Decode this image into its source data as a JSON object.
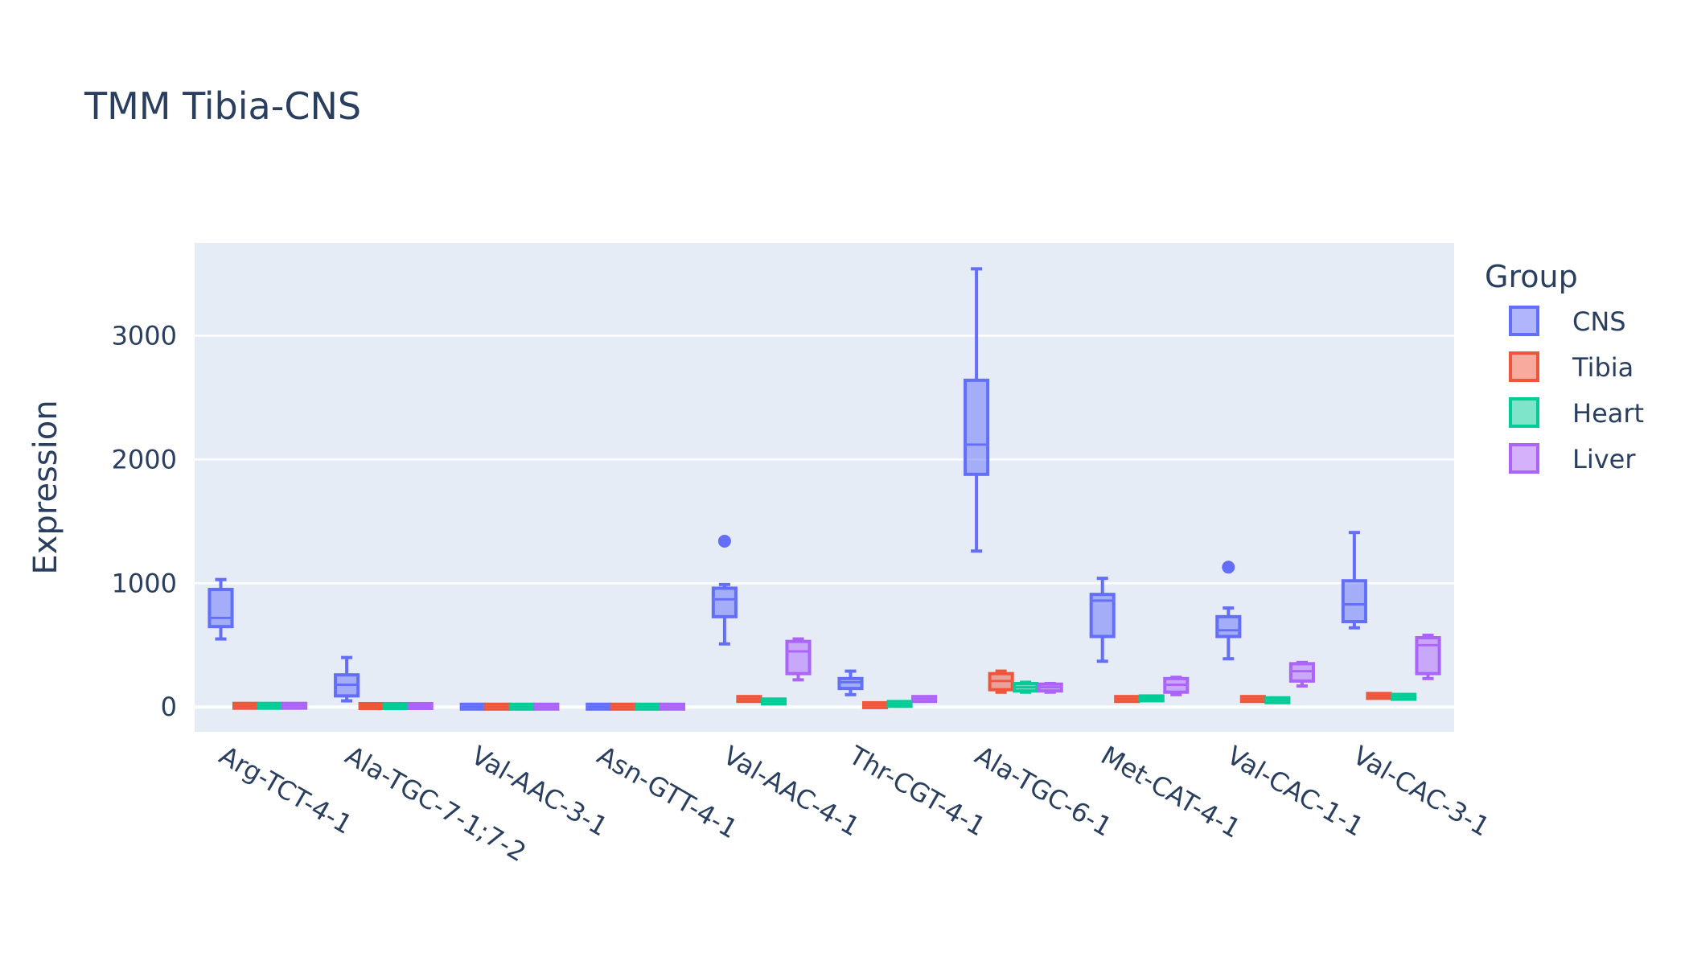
{
  "chart_data": {
    "type": "box",
    "title": "TMM Tibia-CNS",
    "xlabel": "",
    "ylabel": "Expression",
    "ylim": [
      -200,
      3750
    ],
    "yticks": [
      0,
      1000,
      2000,
      3000
    ],
    "legend": {
      "title": "Group",
      "position": "right"
    },
    "grid": true,
    "categories": [
      "Arg-TCT-4-1",
      "Ala-TGC-7-1;7-2",
      "Val-AAC-3-1",
      "Asn-GTT-4-1",
      "Val-AAC-4-1",
      "Thr-CGT-4-1",
      "Ala-TGC-6-1",
      "Met-CAT-4-1",
      "Val-CAC-1-1",
      "Val-CAC-3-1"
    ],
    "series": [
      {
        "name": "CNS",
        "color": "#636efa",
        "boxes": [
          {
            "min": 550,
            "q1": 650,
            "median": 720,
            "q3": 950,
            "max": 1030,
            "outliers": []
          },
          {
            "min": 50,
            "q1": 90,
            "median": 180,
            "q3": 260,
            "max": 400,
            "outliers": []
          },
          {
            "min": 0,
            "q1": 0,
            "median": 3,
            "q3": 6,
            "max": 8,
            "outliers": []
          },
          {
            "min": 0,
            "q1": 0,
            "median": 3,
            "q3": 6,
            "max": 8,
            "outliers": []
          },
          {
            "min": 510,
            "q1": 730,
            "median": 870,
            "q3": 960,
            "max": 990,
            "outliers": [
              1340
            ]
          },
          {
            "min": 100,
            "q1": 150,
            "median": 200,
            "q3": 230,
            "max": 290,
            "outliers": []
          },
          {
            "min": 1260,
            "q1": 1880,
            "median": 2120,
            "q3": 2640,
            "max": 3540,
            "outliers": []
          },
          {
            "min": 370,
            "q1": 570,
            "median": 860,
            "q3": 910,
            "max": 1040,
            "outliers": []
          },
          {
            "min": 390,
            "q1": 570,
            "median": 620,
            "q3": 730,
            "max": 800,
            "outliers": [
              1130
            ]
          },
          {
            "min": 640,
            "q1": 690,
            "median": 830,
            "q3": 1020,
            "max": 1410,
            "outliers": []
          }
        ]
      },
      {
        "name": "Tibia",
        "color": "#ef553b",
        "boxes": [
          {
            "min": 2,
            "q1": 5,
            "median": 10,
            "q3": 15,
            "max": 20,
            "outliers": []
          },
          {
            "min": 2,
            "q1": 4,
            "median": 8,
            "q3": 12,
            "max": 16,
            "outliers": []
          },
          {
            "min": 0,
            "q1": 0,
            "median": 3,
            "q3": 6,
            "max": 8,
            "outliers": []
          },
          {
            "min": 0,
            "q1": 0,
            "median": 3,
            "q3": 6,
            "max": 8,
            "outliers": []
          },
          {
            "min": 50,
            "q1": 55,
            "median": 65,
            "q3": 75,
            "max": 80,
            "outliers": []
          },
          {
            "min": 0,
            "q1": 5,
            "median": 15,
            "q3": 25,
            "max": 30,
            "outliers": []
          },
          {
            "min": 120,
            "q1": 140,
            "median": 210,
            "q3": 270,
            "max": 290,
            "outliers": []
          },
          {
            "min": 50,
            "q1": 55,
            "median": 65,
            "q3": 75,
            "max": 80,
            "outliers": []
          },
          {
            "min": 50,
            "q1": 55,
            "median": 65,
            "q3": 75,
            "max": 80,
            "outliers": []
          },
          {
            "min": 75,
            "q1": 80,
            "median": 90,
            "q3": 100,
            "max": 105,
            "outliers": []
          }
        ]
      },
      {
        "name": "Heart",
        "color": "#00cc96",
        "boxes": [
          {
            "min": 2,
            "q1": 5,
            "median": 10,
            "q3": 15,
            "max": 20,
            "outliers": []
          },
          {
            "min": 2,
            "q1": 4,
            "median": 8,
            "q3": 12,
            "max": 16,
            "outliers": []
          },
          {
            "min": 0,
            "q1": 0,
            "median": 3,
            "q3": 6,
            "max": 8,
            "outliers": []
          },
          {
            "min": 0,
            "q1": 0,
            "median": 3,
            "q3": 6,
            "max": 8,
            "outliers": []
          },
          {
            "min": 30,
            "q1": 35,
            "median": 45,
            "q3": 55,
            "max": 60,
            "outliers": []
          },
          {
            "min": 10,
            "q1": 15,
            "median": 25,
            "q3": 35,
            "max": 40,
            "outliers": []
          },
          {
            "min": 120,
            "q1": 130,
            "median": 160,
            "q3": 190,
            "max": 200,
            "outliers": []
          },
          {
            "min": 55,
            "q1": 60,
            "median": 70,
            "q3": 80,
            "max": 85,
            "outliers": []
          },
          {
            "min": 40,
            "q1": 45,
            "median": 55,
            "q3": 65,
            "max": 70,
            "outliers": []
          },
          {
            "min": 65,
            "q1": 70,
            "median": 85,
            "q3": 95,
            "max": 100,
            "outliers": []
          }
        ]
      },
      {
        "name": "Liver",
        "color": "#ab63fa",
        "boxes": [
          {
            "min": 2,
            "q1": 5,
            "median": 10,
            "q3": 15,
            "max": 20,
            "outliers": []
          },
          {
            "min": 2,
            "q1": 4,
            "median": 8,
            "q3": 12,
            "max": 16,
            "outliers": []
          },
          {
            "min": 0,
            "q1": 0,
            "median": 3,
            "q3": 6,
            "max": 8,
            "outliers": []
          },
          {
            "min": 0,
            "q1": 0,
            "median": 3,
            "q3": 6,
            "max": 8,
            "outliers": []
          },
          {
            "min": 220,
            "q1": 270,
            "median": 450,
            "q3": 530,
            "max": 550,
            "outliers": []
          },
          {
            "min": 50,
            "q1": 55,
            "median": 65,
            "q3": 75,
            "max": 80,
            "outliers": []
          },
          {
            "min": 120,
            "q1": 130,
            "median": 160,
            "q3": 185,
            "max": 190,
            "outliers": []
          },
          {
            "min": 100,
            "q1": 120,
            "median": 180,
            "q3": 230,
            "max": 240,
            "outliers": []
          },
          {
            "min": 170,
            "q1": 210,
            "median": 290,
            "q3": 350,
            "max": 360,
            "outliers": []
          },
          {
            "min": 230,
            "q1": 270,
            "median": 500,
            "q3": 560,
            "max": 580,
            "outliers": []
          }
        ]
      }
    ]
  }
}
